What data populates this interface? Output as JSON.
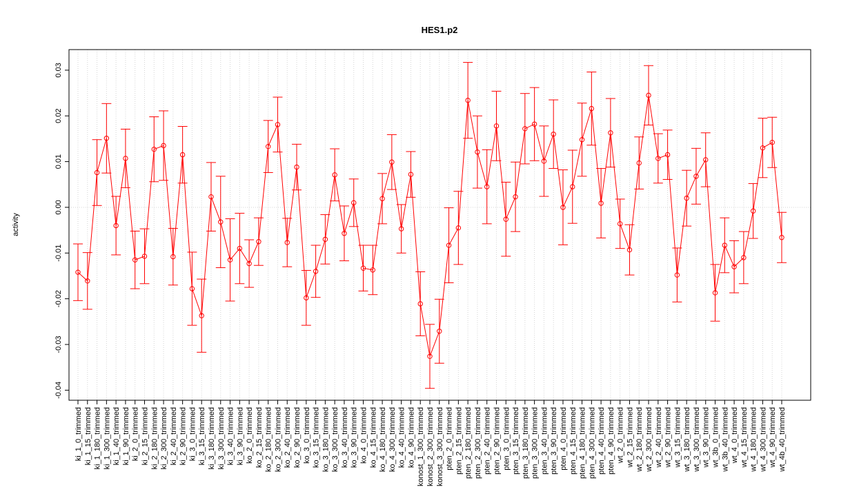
{
  "chart_data": {
    "type": "errorbar_line",
    "title": "HES1.p2",
    "y_label": "activity",
    "color": "#ff0000",
    "grid": true,
    "reference_line": 0,
    "ylim": [
      -0.0422,
      0.0345
    ],
    "yticks": [
      -0.04,
      -0.03,
      -0.02,
      -0.01,
      {
        "value": 0,
        "label": "0.00"
      },
      0.01,
      0.02,
      0.03
    ],
    "categories": [
      "ki_1_0_trimmed",
      "ki_1_15_trimmed",
      "ki_1_180_trimmed",
      "ki_1_300_trimmed",
      "ki_1_40_trimmed",
      "ki_1_90_trimmed",
      "ki_2_0_trimmed",
      "ki_2_15_trimmed",
      "ki_2_180_trimmed",
      "ki_2_300_trimmed",
      "ki_2_40_trimmed",
      "ki_2_90_trimmed",
      "ki_3_0_trimmed",
      "ki_3_15_trimmed",
      "ki_3_180_trimmed",
      "ki_3_300_trimmed",
      "ki_3_40_trimmed",
      "ki_3_90_trimmed",
      "ko_2_0_trimmed",
      "ko_2_15_trimmed",
      "ko_2_180_trimmed",
      "ko_2_300_trimmed",
      "ko_2_40_trimmed",
      "ko_2_90_trimmed",
      "ko_3_0_trimmed",
      "ko_3_15_trimmed",
      "ko_3_180_trimmed",
      "ko_3_300_trimmed",
      "ko_3_40_trimmed",
      "ko_3_90_trimmed",
      "ko_4_0_trimmed",
      "ko_4_15_trimmed",
      "ko_4_180_trimmed",
      "ko_4_300_trimmed",
      "ko_4_40_trimmed",
      "ko_4_90_trimmed",
      "konost_1_300_trimmed",
      "konost_2_300_trimmed",
      "konost_3_300_trimmed",
      "pten_2_0_trimmed",
      "pten_2_15_trimmed",
      "pten_2_180_trimmed",
      "pten_2_300_trimmed",
      "pten_2_40_trimmed",
      "pten_2_90_trimmed",
      "pten_3_0_trimmed",
      "pten_3_15_trimmed",
      "pten_3_180_trimmed",
      "pten_3_300_trimmed",
      "pten_3_40_trimmed",
      "pten_3_90_trimmed",
      "pten_4_0_trimmed",
      "pten_4_15_trimmed",
      "pten_4_180_trimmed",
      "pten_4_300_trimmed",
      "pten_4_40_trimmed",
      "pten_4_90_trimmed",
      "wt_2_0_trimmed",
      "wt_2_15_trimmed",
      "wt_2_180_trimmed",
      "wt_2_300_trimmed",
      "wt_2_40_trimmed",
      "wt_2_90_trimmed",
      "wt_3_15_trimmed",
      "wt_3_180_trimmed",
      "wt_3_300_trimmed",
      "wt_3_90_trimmed",
      "wt_3b_0_trimmed",
      "wt_3b_40_trimmed",
      "wt_4_0_trimmed",
      "wt_4_15_trimmed",
      "wt_4_180_trimmed",
      "wt_4_300_trimmed",
      "wt_4_90_trimmed",
      "wt_4b_40_trimmed"
    ],
    "values": [
      -0.0142,
      -0.0161,
      0.0076,
      0.0151,
      -0.004,
      0.0107,
      -0.0115,
      -0.0107,
      0.0127,
      0.0135,
      -0.0108,
      0.0115,
      -0.0178,
      -0.0237,
      0.0023,
      -0.0032,
      -0.0115,
      -0.009,
      -0.0123,
      -0.0075,
      0.0133,
      0.0181,
      -0.0077,
      0.0088,
      -0.0198,
      -0.014,
      -0.007,
      0.0071,
      -0.0057,
      0.001,
      -0.0133,
      -0.0137,
      0.0019,
      0.0099,
      -0.0047,
      0.0072,
      -0.0211,
      -0.0326,
      -0.0271,
      -0.0083,
      -0.0045,
      0.0234,
      0.0121,
      0.0045,
      0.0178,
      -0.0026,
      0.0023,
      0.0172,
      0.0182,
      0.0101,
      0.016,
      0.0,
      0.0045,
      0.0148,
      0.0216,
      0.0009,
      0.0163,
      -0.0036,
      -0.0093,
      0.0097,
      0.0245,
      0.0107,
      0.0115,
      -0.0148,
      0.002,
      0.0068,
      0.0104,
      -0.0187,
      -0.0083,
      -0.013,
      -0.011,
      -0.0008,
      0.013,
      0.0142,
      -0.0066
    ],
    "errors": [
      0.0062,
      0.0062,
      0.0072,
      0.0076,
      0.0064,
      0.0064,
      0.0063,
      0.006,
      0.0071,
      0.0076,
      0.0062,
      0.0062,
      0.008,
      0.008,
      0.0075,
      0.01,
      0.009,
      0.0077,
      0.0052,
      0.0052,
      0.0057,
      0.006,
      0.0053,
      0.005,
      0.006,
      0.0057,
      0.0054,
      0.0057,
      0.006,
      0.0052,
      0.005,
      0.0054,
      0.0055,
      0.006,
      0.0053,
      0.005,
      0.007,
      0.007,
      0.007,
      0.0082,
      0.008,
      0.0083,
      0.0079,
      0.0081,
      0.0076,
      0.0081,
      0.0076,
      0.0077,
      0.008,
      0.0077,
      0.0075,
      0.0082,
      0.008,
      0.008,
      0.008,
      0.0076,
      0.0075,
      0.0054,
      0.0055,
      0.0057,
      0.0065,
      0.0054,
      0.0054,
      0.0059,
      0.0061,
      0.0061,
      0.0059,
      0.0062,
      0.006,
      0.0057,
      0.0057,
      0.006,
      0.0065,
      0.0055,
      0.0055
    ]
  }
}
